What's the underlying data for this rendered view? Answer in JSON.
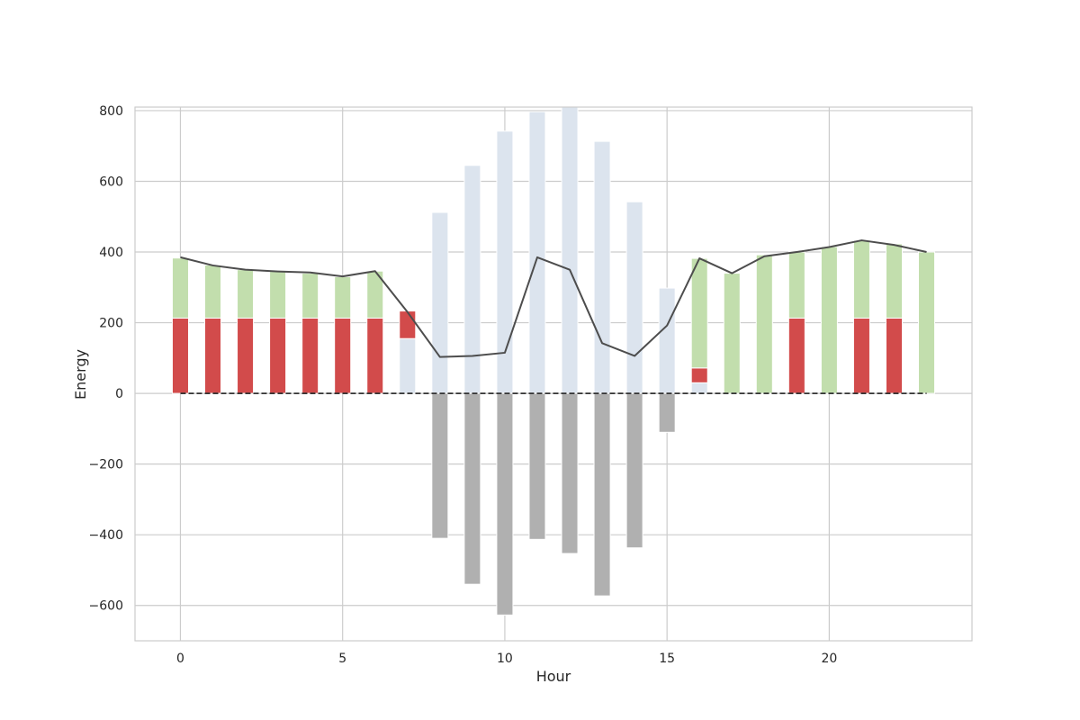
{
  "chart_data": {
    "type": "bar",
    "title": "",
    "xlabel": "Hour",
    "ylabel": "Energy",
    "xlim": [
      -1.4,
      24.4
    ],
    "ylim": [
      -700,
      810
    ],
    "xticks": [
      0,
      5,
      10,
      15,
      20
    ],
    "yticks": [
      -600,
      -400,
      -200,
      0,
      200,
      400,
      600,
      800
    ],
    "grid": true,
    "x": [
      0,
      1,
      2,
      3,
      4,
      5,
      6,
      7,
      8,
      9,
      10,
      11,
      12,
      13,
      14,
      15,
      16,
      17,
      18,
      19,
      20,
      21,
      22,
      23
    ],
    "stacked_series": [
      {
        "name": "",
        "color": "#dce4ee",
        "values": [
          0,
          0,
          0,
          0,
          0,
          0,
          0,
          155,
          512,
          645,
          742,
          797,
          810,
          713,
          542,
          298,
          30,
          0,
          0,
          0,
          0,
          0,
          0,
          0
        ]
      },
      {
        "name": "",
        "color": "#d24b4b",
        "values": [
          213,
          213,
          213,
          213,
          213,
          213,
          213,
          78,
          0,
          0,
          0,
          0,
          0,
          0,
          0,
          0,
          42,
          0,
          0,
          213,
          0,
          213,
          213,
          0
        ]
      },
      {
        "name": "",
        "color": "#c2dead",
        "values": [
          170,
          150,
          137,
          132,
          127,
          117,
          133,
          0,
          0,
          0,
          0,
          0,
          0,
          0,
          0,
          0,
          310,
          340,
          392,
          187,
          415,
          220,
          210,
          400
        ]
      }
    ],
    "negative_series": {
      "name": "",
      "color": "#b0b0b0",
      "values": [
        0,
        0,
        0,
        0,
        0,
        0,
        0,
        0,
        -410,
        -540,
        -627,
        -413,
        -453,
        -573,
        -437,
        -110,
        0,
        0,
        0,
        0,
        0,
        0,
        0,
        0
      ]
    },
    "line_series": {
      "name": "",
      "color": "#4d4d4d",
      "values": [
        385,
        362,
        350,
        345,
        342,
        331,
        346,
        230,
        103,
        106,
        115,
        385,
        350,
        142,
        106,
        192,
        382,
        340,
        388,
        400,
        414,
        433,
        420,
        400
      ]
    },
    "baseline_series": {
      "name": "",
      "color": "#333333",
      "style": "dashed",
      "values": [
        0,
        0,
        0,
        0,
        0,
        0,
        0,
        0,
        0,
        0,
        0,
        0,
        0,
        0,
        0,
        0,
        0,
        0,
        0,
        0,
        0,
        0,
        0,
        0
      ]
    }
  }
}
